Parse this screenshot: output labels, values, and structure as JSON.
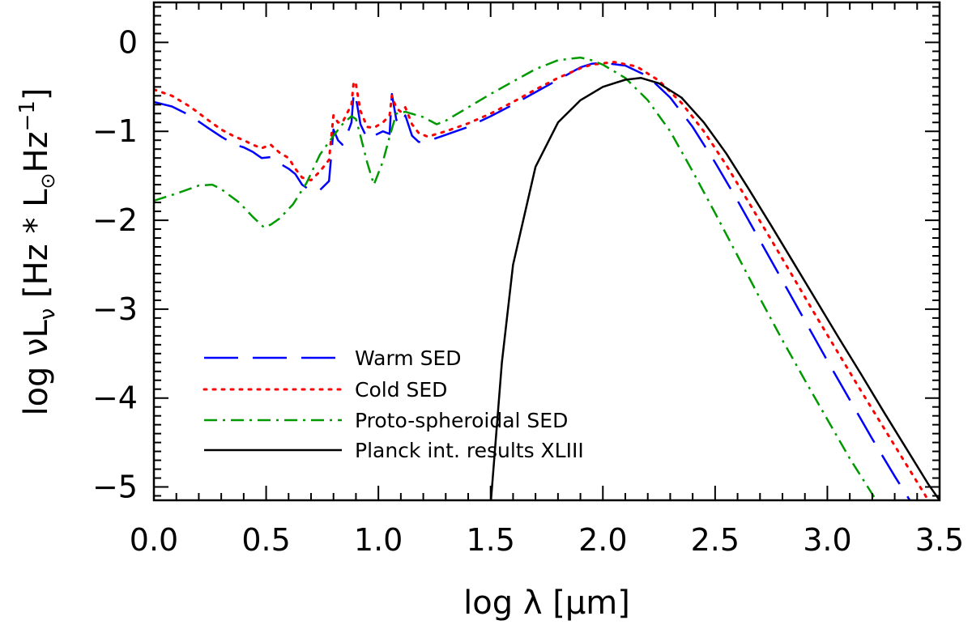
{
  "chart_data": {
    "type": "line",
    "title": "",
    "xlabel": "log λ [μm]",
    "ylabel_main": "log νL",
    "ylabel_sub": "ν",
    "ylabel_unit_open": "[Hz * L",
    "ylabel_unit_sun": "⊙",
    "ylabel_unit_mid": "Hz",
    "ylabel_unit_exp": "−1",
    "ylabel_unit_close": "]",
    "xlim": [
      0.0,
      3.5
    ],
    "ylim": [
      -5.15,
      0.45
    ],
    "x_ticks": [
      0.0,
      0.5,
      1.0,
      1.5,
      2.0,
      2.5,
      3.0,
      3.5
    ],
    "x_tick_labels": [
      "0.0",
      "0.5",
      "1.0",
      "1.5",
      "2.0",
      "2.5",
      "3.0",
      "3.5"
    ],
    "y_ticks": [
      0,
      -1,
      -2,
      -3,
      -4,
      -5
    ],
    "y_tick_labels": [
      "0",
      "−1",
      "−2",
      "−3",
      "−4",
      "−5"
    ],
    "grid": false,
    "legend_position": "bottom-left",
    "series": [
      {
        "name": "Warm SED",
        "color": "#0000ff",
        "dash": "42,18",
        "points": [
          [
            0.0,
            -0.67
          ],
          [
            0.08,
            -0.72
          ],
          [
            0.16,
            -0.82
          ],
          [
            0.24,
            -0.96
          ],
          [
            0.3,
            -1.06
          ],
          [
            0.36,
            -1.15
          ],
          [
            0.4,
            -1.18
          ],
          [
            0.44,
            -1.23
          ],
          [
            0.48,
            -1.3
          ],
          [
            0.52,
            -1.29
          ],
          [
            0.56,
            -1.36
          ],
          [
            0.6,
            -1.42
          ],
          [
            0.63,
            -1.48
          ],
          [
            0.66,
            -1.6
          ],
          [
            0.7,
            -1.67
          ],
          [
            0.74,
            -1.66
          ],
          [
            0.78,
            -1.56
          ],
          [
            0.8,
            -0.98
          ],
          [
            0.82,
            -1.1
          ],
          [
            0.84,
            -1.15
          ],
          [
            0.86,
            -1.04
          ],
          [
            0.88,
            -0.9
          ],
          [
            0.89,
            -0.56
          ],
          [
            0.9,
            -0.62
          ],
          [
            0.92,
            -0.92
          ],
          [
            0.95,
            -1.08
          ],
          [
            0.98,
            -1.05
          ],
          [
            1.02,
            -1.0
          ],
          [
            1.05,
            -1.03
          ],
          [
            1.06,
            -0.58
          ],
          [
            1.08,
            -0.87
          ],
          [
            1.1,
            -0.93
          ],
          [
            1.12,
            -0.82
          ],
          [
            1.15,
            -1.05
          ],
          [
            1.18,
            -1.12
          ],
          [
            1.22,
            -1.11
          ],
          [
            1.3,
            -1.04
          ],
          [
            1.4,
            -0.95
          ],
          [
            1.5,
            -0.83
          ],
          [
            1.6,
            -0.7
          ],
          [
            1.7,
            -0.56
          ],
          [
            1.8,
            -0.42
          ],
          [
            1.9,
            -0.28
          ],
          [
            1.95,
            -0.24
          ],
          [
            2.0,
            -0.23
          ],
          [
            2.1,
            -0.26
          ],
          [
            2.2,
            -0.38
          ],
          [
            2.3,
            -0.62
          ],
          [
            2.4,
            -0.95
          ],
          [
            2.5,
            -1.35
          ],
          [
            2.6,
            -1.78
          ],
          [
            2.7,
            -2.23
          ],
          [
            2.8,
            -2.68
          ],
          [
            2.9,
            -3.13
          ],
          [
            3.0,
            -3.58
          ],
          [
            3.1,
            -4.02
          ],
          [
            3.2,
            -4.46
          ],
          [
            3.3,
            -4.88
          ],
          [
            3.38,
            -5.2
          ]
        ]
      },
      {
        "name": "Cold SED",
        "color": "#ff0000",
        "dash": "3,8",
        "points": [
          [
            0.0,
            -0.53
          ],
          [
            0.08,
            -0.6
          ],
          [
            0.16,
            -0.72
          ],
          [
            0.24,
            -0.87
          ],
          [
            0.3,
            -0.98
          ],
          [
            0.36,
            -1.06
          ],
          [
            0.4,
            -1.1
          ],
          [
            0.44,
            -1.15
          ],
          [
            0.48,
            -1.19
          ],
          [
            0.52,
            -1.15
          ],
          [
            0.56,
            -1.24
          ],
          [
            0.6,
            -1.3
          ],
          [
            0.63,
            -1.42
          ],
          [
            0.66,
            -1.52
          ],
          [
            0.7,
            -1.55
          ],
          [
            0.74,
            -1.45
          ],
          [
            0.78,
            -1.32
          ],
          [
            0.8,
            -0.82
          ],
          [
            0.82,
            -0.9
          ],
          [
            0.84,
            -0.9
          ],
          [
            0.86,
            -0.8
          ],
          [
            0.88,
            -0.7
          ],
          [
            0.89,
            -0.44
          ],
          [
            0.9,
            -0.47
          ],
          [
            0.92,
            -0.77
          ],
          [
            0.95,
            -0.95
          ],
          [
            0.98,
            -0.96
          ],
          [
            1.02,
            -0.9
          ],
          [
            1.05,
            -0.82
          ],
          [
            1.06,
            -0.6
          ],
          [
            1.08,
            -0.74
          ],
          [
            1.1,
            -0.78
          ],
          [
            1.12,
            -0.73
          ],
          [
            1.15,
            -0.92
          ],
          [
            1.18,
            -1.02
          ],
          [
            1.22,
            -1.06
          ],
          [
            1.3,
            -1.0
          ],
          [
            1.4,
            -0.91
          ],
          [
            1.5,
            -0.8
          ],
          [
            1.6,
            -0.67
          ],
          [
            1.7,
            -0.53
          ],
          [
            1.8,
            -0.4
          ],
          [
            1.9,
            -0.29
          ],
          [
            1.95,
            -0.25
          ],
          [
            2.05,
            -0.22
          ],
          [
            2.15,
            -0.27
          ],
          [
            2.25,
            -0.43
          ],
          [
            2.35,
            -0.68
          ],
          [
            2.45,
            -1.0
          ],
          [
            2.55,
            -1.38
          ],
          [
            2.65,
            -1.8
          ],
          [
            2.75,
            -2.22
          ],
          [
            2.85,
            -2.65
          ],
          [
            2.95,
            -3.08
          ],
          [
            3.05,
            -3.5
          ],
          [
            3.15,
            -3.92
          ],
          [
            3.25,
            -4.33
          ],
          [
            3.35,
            -4.74
          ],
          [
            3.45,
            -5.15
          ]
        ]
      },
      {
        "name": "Proto-spheroidal SED",
        "color": "#009900",
        "dash": "16,7,3,7",
        "points": [
          [
            0.0,
            -1.78
          ],
          [
            0.1,
            -1.7
          ],
          [
            0.2,
            -1.61
          ],
          [
            0.26,
            -1.6
          ],
          [
            0.3,
            -1.65
          ],
          [
            0.38,
            -1.8
          ],
          [
            0.44,
            -1.96
          ],
          [
            0.49,
            -2.08
          ],
          [
            0.52,
            -2.05
          ],
          [
            0.56,
            -1.98
          ],
          [
            0.62,
            -1.82
          ],
          [
            0.68,
            -1.58
          ],
          [
            0.74,
            -1.26
          ],
          [
            0.8,
            -1.05
          ],
          [
            0.84,
            -0.92
          ],
          [
            0.88,
            -0.83
          ],
          [
            0.9,
            -0.86
          ],
          [
            0.92,
            -1.05
          ],
          [
            0.95,
            -1.35
          ],
          [
            0.98,
            -1.6
          ],
          [
            1.02,
            -1.34
          ],
          [
            1.05,
            -1.06
          ],
          [
            1.08,
            -0.8
          ],
          [
            1.12,
            -0.78
          ],
          [
            1.2,
            -0.84
          ],
          [
            1.26,
            -0.92
          ],
          [
            1.3,
            -0.88
          ],
          [
            1.4,
            -0.73
          ],
          [
            1.5,
            -0.58
          ],
          [
            1.6,
            -0.44
          ],
          [
            1.7,
            -0.3
          ],
          [
            1.8,
            -0.2
          ],
          [
            1.9,
            -0.17
          ],
          [
            1.95,
            -0.2
          ],
          [
            2.0,
            -0.25
          ],
          [
            2.1,
            -0.4
          ],
          [
            2.2,
            -0.65
          ],
          [
            2.3,
            -1.0
          ],
          [
            2.4,
            -1.45
          ],
          [
            2.5,
            -1.92
          ],
          [
            2.6,
            -2.4
          ],
          [
            2.7,
            -2.88
          ],
          [
            2.8,
            -3.35
          ],
          [
            2.9,
            -3.8
          ],
          [
            3.0,
            -4.24
          ],
          [
            3.1,
            -4.68
          ],
          [
            3.18,
            -5.0
          ],
          [
            3.23,
            -5.2
          ]
        ]
      },
      {
        "name": "Planck int. results XLIII",
        "color": "#000000",
        "dash": "",
        "points": [
          [
            1.5,
            -5.2
          ],
          [
            1.55,
            -3.6
          ],
          [
            1.6,
            -2.5
          ],
          [
            1.7,
            -1.4
          ],
          [
            1.8,
            -0.9
          ],
          [
            1.9,
            -0.65
          ],
          [
            2.0,
            -0.5
          ],
          [
            2.1,
            -0.42
          ],
          [
            2.17,
            -0.4
          ],
          [
            2.25,
            -0.46
          ],
          [
            2.35,
            -0.62
          ],
          [
            2.45,
            -0.9
          ],
          [
            2.55,
            -1.25
          ],
          [
            2.65,
            -1.65
          ],
          [
            2.75,
            -2.06
          ],
          [
            2.85,
            -2.48
          ],
          [
            2.95,
            -2.9
          ],
          [
            3.05,
            -3.32
          ],
          [
            3.15,
            -3.73
          ],
          [
            3.25,
            -4.15
          ],
          [
            3.35,
            -4.56
          ],
          [
            3.45,
            -4.97
          ],
          [
            3.5,
            -5.15
          ]
        ]
      }
    ]
  }
}
